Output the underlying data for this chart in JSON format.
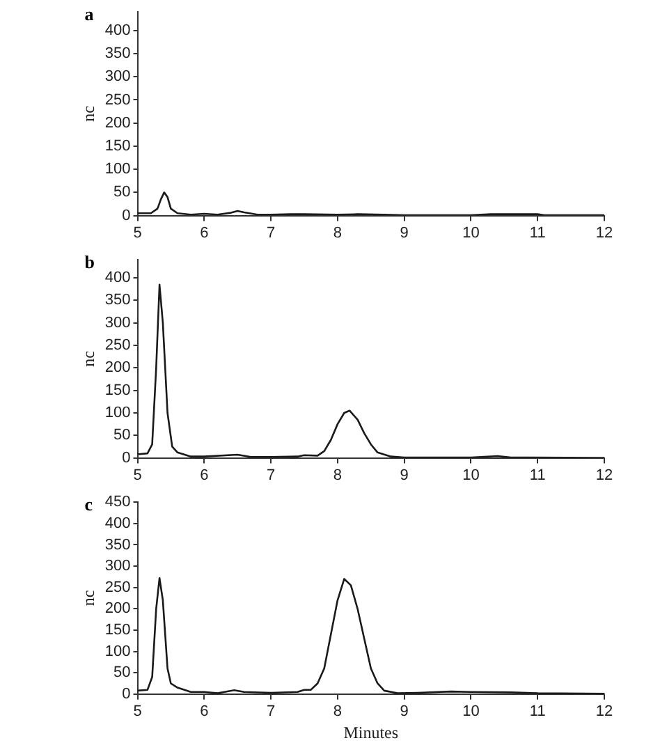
{
  "chart_data": [
    {
      "type": "line",
      "title": "a",
      "ylabel": "nc",
      "xlim": [
        5,
        12
      ],
      "xticks": [
        5,
        6,
        7,
        8,
        9,
        10,
        11,
        12
      ],
      "ylim": [
        0,
        440
      ],
      "yticks": [
        0,
        50,
        100,
        150,
        200,
        250,
        300,
        350,
        400
      ],
      "grid": false,
      "legend": false,
      "marker": "none",
      "line_style": "solid",
      "series": [
        {
          "color": "#1a1a1a",
          "x": [
            5,
            5.2,
            5.3,
            5.35,
            5.4,
            5.45,
            5.5,
            5.6,
            5.8,
            6.0,
            6.2,
            6.4,
            6.5,
            6.6,
            6.8,
            7.0,
            7.3,
            7.5,
            8.0,
            8.3,
            8.7,
            9,
            10,
            10.3,
            11,
            11.1,
            12
          ],
          "values": [
            5,
            5,
            15,
            35,
            50,
            40,
            15,
            5,
            2,
            4,
            2,
            6,
            10,
            7,
            2,
            2,
            3,
            3,
            2,
            3,
            2,
            1,
            1,
            3,
            3,
            1,
            1
          ]
        }
      ]
    },
    {
      "type": "line",
      "title": "b",
      "ylabel": "nc",
      "xlim": [
        5,
        12
      ],
      "xticks": [
        5,
        6,
        7,
        8,
        9,
        10,
        11,
        12
      ],
      "ylim": [
        0,
        440
      ],
      "yticks": [
        0,
        50,
        100,
        150,
        200,
        250,
        300,
        350,
        400
      ],
      "grid": false,
      "legend": false,
      "marker": "none",
      "line_style": "solid",
      "series": [
        {
          "color": "#1a1a1a",
          "x": [
            5,
            5.15,
            5.22,
            5.28,
            5.33,
            5.38,
            5.45,
            5.52,
            5.6,
            5.8,
            6,
            6.5,
            6.7,
            7,
            7.4,
            7.5,
            7.7,
            7.8,
            7.9,
            8.0,
            8.1,
            8.18,
            8.3,
            8.4,
            8.5,
            8.6,
            8.8,
            9,
            10,
            10.4,
            10.6,
            12
          ],
          "values": [
            8,
            10,
            30,
            200,
            385,
            300,
            100,
            25,
            12,
            3,
            3,
            7,
            2,
            2,
            3,
            6,
            5,
            15,
            40,
            75,
            100,
            105,
            85,
            55,
            30,
            12,
            3,
            1,
            1,
            4,
            1,
            0
          ]
        }
      ]
    },
    {
      "type": "line",
      "title": "c",
      "xlabel": "Minutes",
      "ylabel": "nc",
      "xlim": [
        5,
        12
      ],
      "xticks": [
        5,
        6,
        7,
        8,
        9,
        10,
        11,
        12
      ],
      "ylim": [
        0,
        450
      ],
      "yticks": [
        0,
        50,
        100,
        150,
        200,
        250,
        300,
        350,
        400,
        450
      ],
      "grid": false,
      "legend": false,
      "marker": "none",
      "line_style": "solid",
      "series": [
        {
          "color": "#1a1a1a",
          "x": [
            5,
            5.15,
            5.22,
            5.28,
            5.33,
            5.38,
            5.45,
            5.5,
            5.6,
            5.8,
            6,
            6.2,
            6.45,
            6.6,
            7,
            7.4,
            7.5,
            7.6,
            7.7,
            7.8,
            7.9,
            8.0,
            8.1,
            8.2,
            8.3,
            8.4,
            8.5,
            8.6,
            8.7,
            8.9,
            9.2,
            9.7,
            10,
            10.6,
            11,
            12
          ],
          "values": [
            8,
            10,
            40,
            200,
            272,
            220,
            60,
            25,
            15,
            5,
            5,
            2,
            9,
            5,
            3,
            5,
            10,
            10,
            25,
            60,
            140,
            220,
            270,
            255,
            200,
            130,
            60,
            25,
            8,
            2,
            3,
            6,
            5,
            4,
            2,
            1
          ]
        }
      ]
    }
  ]
}
